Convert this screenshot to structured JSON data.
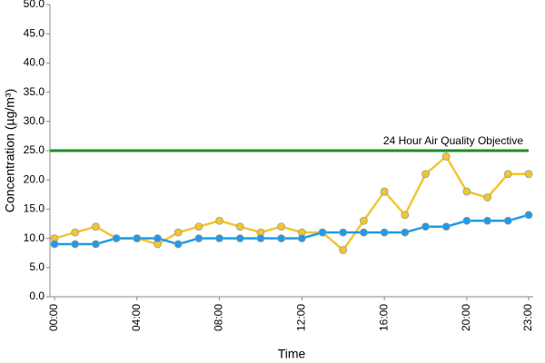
{
  "chart_data": {
    "type": "line",
    "x_label": "Time",
    "y_label": "Concentration (µg/m³)",
    "categories": [
      "00:00",
      null,
      null,
      null,
      "04:00",
      null,
      null,
      null,
      "08:00",
      null,
      null,
      null,
      "12:00",
      null,
      null,
      null,
      "16:00",
      null,
      null,
      null,
      "20:00",
      null,
      null,
      "23:00"
    ],
    "series": [
      {
        "color": "#f2c62f",
        "values": [
          10,
          11,
          12,
          10,
          10,
          9,
          11,
          12,
          13,
          12,
          11,
          12,
          11,
          11,
          8,
          13,
          18,
          14,
          21,
          24,
          18,
          17,
          21,
          21
        ]
      },
      {
        "color": "#1e9be9",
        "values": [
          9,
          9,
          9,
          10,
          10,
          10,
          9,
          10,
          10,
          10,
          10,
          10,
          10,
          11,
          11,
          11,
          11,
          11,
          12,
          12,
          13,
          13,
          13,
          14
        ]
      }
    ],
    "reference_line": {
      "value": 25,
      "label": "24 Hour Air Quality Objective",
      "color": "#228b22"
    },
    "ylim": [
      0,
      50
    ],
    "yticks": [
      {
        "value": 0,
        "label": "0.0"
      },
      {
        "value": 5,
        "label": "5.0"
      },
      {
        "value": 10,
        "label": "10.0"
      },
      {
        "value": 15,
        "label": "15.0"
      },
      {
        "value": 20,
        "label": "20.0"
      },
      {
        "value": 25,
        "label": "25.0"
      },
      {
        "value": 30,
        "label": "30.0"
      },
      {
        "value": 35,
        "label": "35.0"
      },
      {
        "value": 40,
        "label": "40.0"
      },
      {
        "value": 45,
        "label": "45.0"
      },
      {
        "value": 50,
        "label": "50.0"
      }
    ],
    "grid": false
  }
}
